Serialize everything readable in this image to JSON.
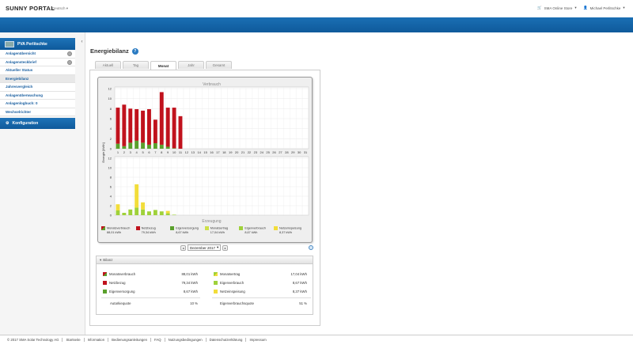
{
  "header": {
    "logo": "SUNNY PORTAL",
    "language": "Deutsch",
    "shop": "SMA Online Store",
    "user": "Michael Perlitschke",
    "colors": {
      "brand": "#1469ad",
      "accent": "#1a5fa0"
    }
  },
  "sidebar": {
    "plant": "PVA Perlitschke",
    "items": [
      {
        "label": "Anlagenübersicht",
        "icon": "gear-icon"
      },
      {
        "label": "Anlagensteckbrief",
        "icon": "gear-icon"
      },
      {
        "label": "Aktueller Status"
      },
      {
        "label": "Energiebilanz",
        "active": true
      },
      {
        "label": "Jahresvergleich"
      },
      {
        "label": "Anlagenüberwachung"
      },
      {
        "label": "Anlagenlogbuch: 0"
      },
      {
        "label": "Wechselrichter"
      }
    ],
    "config": "Konfiguration"
  },
  "main": {
    "title": "Energiebilanz",
    "tabs": [
      "Aktuell",
      "Tag",
      "Monat",
      "Jahr",
      "Gesamt"
    ],
    "active_tab": "Monat",
    "month_select": "Dezember 2017"
  },
  "chart_data": {
    "type": "bar",
    "top_title": "Verbrauch",
    "bottom_title": "Erzeugung",
    "ylabel": "Energie [kWh]",
    "ylim": [
      0,
      12
    ],
    "yticks": [
      "12",
      "10",
      "8",
      "6",
      "4",
      "2",
      "0"
    ],
    "categories": [
      "1",
      "2",
      "3",
      "4",
      "5",
      "6",
      "7",
      "8",
      "9",
      "10",
      "11",
      "12",
      "13",
      "14",
      "15",
      "16",
      "17",
      "18",
      "19",
      "20",
      "21",
      "22",
      "23",
      "24",
      "25",
      "26",
      "27",
      "28",
      "29",
      "30",
      "31"
    ],
    "consumption": {
      "netzbezug": [
        7.2,
        8.3,
        6.8,
        6.3,
        6.4,
        7.1,
        4.7,
        10.5,
        7.8,
        8.1,
        6.5
      ],
      "eigenversorgung": [
        1.0,
        0.5,
        1.2,
        1.6,
        1.2,
        0.8,
        1.1,
        0.8,
        0.4,
        0.1,
        0.0
      ]
    },
    "generation": {
      "eigenverbrauch": [
        1.0,
        0.5,
        1.2,
        1.6,
        1.2,
        0.8,
        1.1,
        0.8,
        0.4,
        0.1,
        0.0
      ],
      "netzeinspeisung": [
        1.3,
        0.0,
        0.0,
        4.9,
        1.5,
        0.0,
        0.0,
        0.0,
        0.5,
        0.0,
        0.0
      ]
    },
    "colors": {
      "netzbezug": "#c0121d",
      "eigenversorgung": "#5aa02c",
      "eigenverbrauch": "#9fd13a",
      "netzeinspeisung": "#f2dd3a"
    },
    "legend": [
      {
        "label": "Monatsverbrauch",
        "value": "88,01 kWh",
        "swatch": "#c0121d"
      },
      {
        "label": "Netzbezug",
        "value": "79,34 kWh",
        "swatch": "#c0121d"
      },
      {
        "label": "Eigenversorgung",
        "value": "8,67 kWh",
        "swatch": "#5aa02c"
      },
      {
        "label": "Monatsertrag",
        "value": "17,04 kWh",
        "swatch": "#cde04a"
      },
      {
        "label": "Eigenverbrauch",
        "value": "8,67 kWh",
        "swatch": "#9fd13a"
      },
      {
        "label": "Netzeinspeisung",
        "value": "8,37 kWh",
        "swatch": "#f2dd3a"
      }
    ]
  },
  "bilanz": {
    "title": "Bilanz",
    "left": [
      {
        "label": "Monatsverbrauch",
        "value": "88,01 kWh"
      },
      {
        "label": "Netzbezug",
        "value": "79,34 kWh"
      },
      {
        "label": "Eigenversorgung",
        "value": "8,67 kWh"
      }
    ],
    "right": [
      {
        "label": "Monatsertrag",
        "value": "17,04 kWh"
      },
      {
        "label": "Eigenverbrauch",
        "value": "8,67 kWh"
      },
      {
        "label": "Netzeinspeisung",
        "value": "8,37 kWh"
      }
    ],
    "autarkie_label": "Autarkiequote",
    "autarkie_value": "10 %",
    "eigenverbrauch_label": "Eigenverbrauchsquote",
    "eigenverbrauch_value": "51 %"
  },
  "footer": {
    "links": [
      "© 2017 SMA Solar Technology AG",
      "Startseite",
      "Information",
      "Bedienungsanleitungen",
      "FAQ",
      "Nutzungsbedingungen",
      "Datenschutzerklärung",
      "Impressum"
    ]
  }
}
